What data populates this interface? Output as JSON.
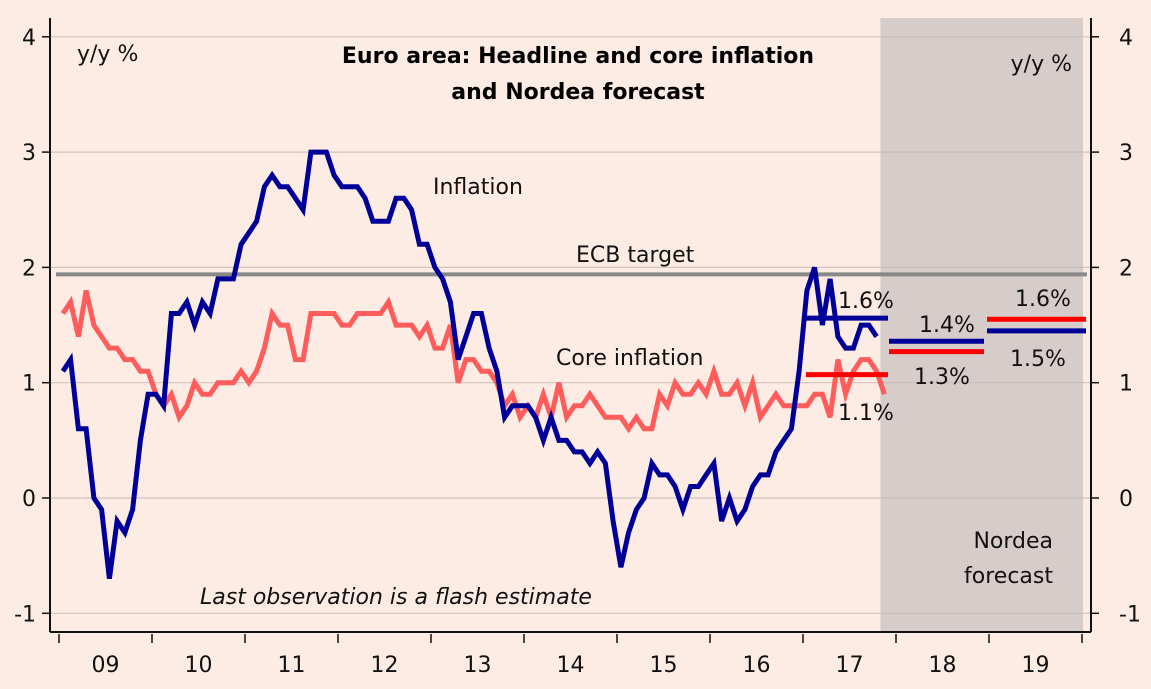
{
  "chart_data": {
    "type": "line",
    "title": "Euro area: Headline and core inflation and Nordea forecast",
    "title_lines": [
      "Euro area: Headline and core inflation",
      "and Nordea forecast"
    ],
    "ylabel_left": "y/y %",
    "ylabel_right": "y/y %",
    "ylim": [
      -1.1,
      4.0
    ],
    "yticks": [
      -1,
      0,
      1,
      2,
      3,
      4
    ],
    "ytick_labels": [
      "-1",
      "0",
      "1",
      "2",
      "3",
      "4"
    ],
    "x_start": "2009-01",
    "x_range_years": [
      2009,
      2020
    ],
    "xtick_labels": [
      "09",
      "10",
      "11",
      "12",
      "13",
      "14",
      "15",
      "16",
      "17",
      "18",
      "19"
    ],
    "grid": true,
    "series": [
      {
        "name": "Inflation",
        "color": "#000099",
        "frequency": "monthly",
        "values": [
          1.1,
          1.2,
          0.6,
          0.6,
          0.0,
          -0.1,
          -0.7,
          -0.2,
          -0.3,
          -0.1,
          0.5,
          0.9,
          0.9,
          0.8,
          1.6,
          1.6,
          1.7,
          1.5,
          1.7,
          1.6,
          1.9,
          1.9,
          1.9,
          2.2,
          2.3,
          2.4,
          2.7,
          2.8,
          2.7,
          2.7,
          2.6,
          2.5,
          3.0,
          3.0,
          3.0,
          2.8,
          2.7,
          2.7,
          2.7,
          2.6,
          2.4,
          2.4,
          2.4,
          2.6,
          2.6,
          2.5,
          2.2,
          2.2,
          2.0,
          1.9,
          1.7,
          1.2,
          1.4,
          1.6,
          1.6,
          1.3,
          1.1,
          0.7,
          0.8,
          0.8,
          0.8,
          0.7,
          0.5,
          0.7,
          0.5,
          0.5,
          0.4,
          0.4,
          0.3,
          0.4,
          0.3,
          -0.2,
          -0.6,
          -0.3,
          -0.1,
          0.0,
          0.3,
          0.2,
          0.2,
          0.1,
          -0.1,
          0.1,
          0.1,
          0.2,
          0.3,
          -0.2,
          0.0,
          -0.2,
          -0.1,
          0.1,
          0.2,
          0.2,
          0.4,
          0.5,
          0.6,
          1.1,
          1.8,
          2.0,
          1.5,
          1.9,
          1.4,
          1.3,
          1.3,
          1.5,
          1.5,
          1.4
        ]
      },
      {
        "name": "Core inflation",
        "color": "#ff5c5c",
        "frequency": "monthly",
        "values": [
          1.6,
          1.7,
          1.4,
          1.8,
          1.5,
          1.4,
          1.3,
          1.3,
          1.2,
          1.2,
          1.1,
          1.1,
          0.9,
          0.8,
          0.9,
          0.7,
          0.8,
          1.0,
          0.9,
          0.9,
          1.0,
          1.0,
          1.0,
          1.1,
          1.0,
          1.1,
          1.3,
          1.6,
          1.5,
          1.5,
          1.2,
          1.2,
          1.6,
          1.6,
          1.6,
          1.6,
          1.5,
          1.5,
          1.6,
          1.6,
          1.6,
          1.6,
          1.7,
          1.5,
          1.5,
          1.5,
          1.4,
          1.5,
          1.3,
          1.3,
          1.5,
          1.0,
          1.2,
          1.2,
          1.1,
          1.1,
          1.0,
          0.8,
          0.9,
          0.7,
          0.8,
          0.7,
          0.9,
          0.7,
          1.0,
          0.7,
          0.8,
          0.8,
          0.9,
          0.8,
          0.7,
          0.7,
          0.7,
          0.6,
          0.7,
          0.6,
          0.6,
          0.9,
          0.8,
          1.0,
          0.9,
          0.9,
          1.0,
          0.9,
          1.1,
          0.9,
          0.9,
          1.0,
          0.8,
          1.0,
          0.7,
          0.8,
          0.9,
          0.8,
          0.8,
          0.8,
          0.8,
          0.9,
          0.9,
          0.7,
          1.2,
          0.9,
          1.1,
          1.2,
          1.2,
          1.1,
          0.9
        ]
      }
    ],
    "reference_lines": [
      {
        "name": "ECB target",
        "label": "ECB target",
        "value": 1.94,
        "color": "#888888"
      }
    ],
    "forecast_region": {
      "label_lines": [
        "Nordea",
        "forecast"
      ],
      "from": "2017-11",
      "to": "2019-12",
      "color": "#d6cdca"
    },
    "forecast_bars": [
      {
        "series": "Inflation",
        "year": 2017,
        "value": 1.56,
        "label": "1.6%"
      },
      {
        "series": "Core inflation",
        "year": 2017,
        "value": 1.07,
        "label": "1.1%"
      },
      {
        "series": "Inflation",
        "year": 2018,
        "value": 1.36,
        "label": "1.4%"
      },
      {
        "series": "Core inflation",
        "year": 2018,
        "value": 1.27,
        "label": "1.3%"
      },
      {
        "series": "Inflation",
        "year": 2019,
        "value": 1.45,
        "label": "1.5%"
      },
      {
        "series": "Core inflation",
        "year": 2019,
        "value": 1.55,
        "label": "1.6%"
      }
    ],
    "forecast_bar_colors": {
      "Inflation": "#000099",
      "Core inflation": "#ff0000"
    },
    "annotations": {
      "inflation_label": "Inflation",
      "core_label": "Core inflation",
      "ecb_label": "ECB target",
      "footnote": "Last observation is a flash estimate"
    }
  }
}
